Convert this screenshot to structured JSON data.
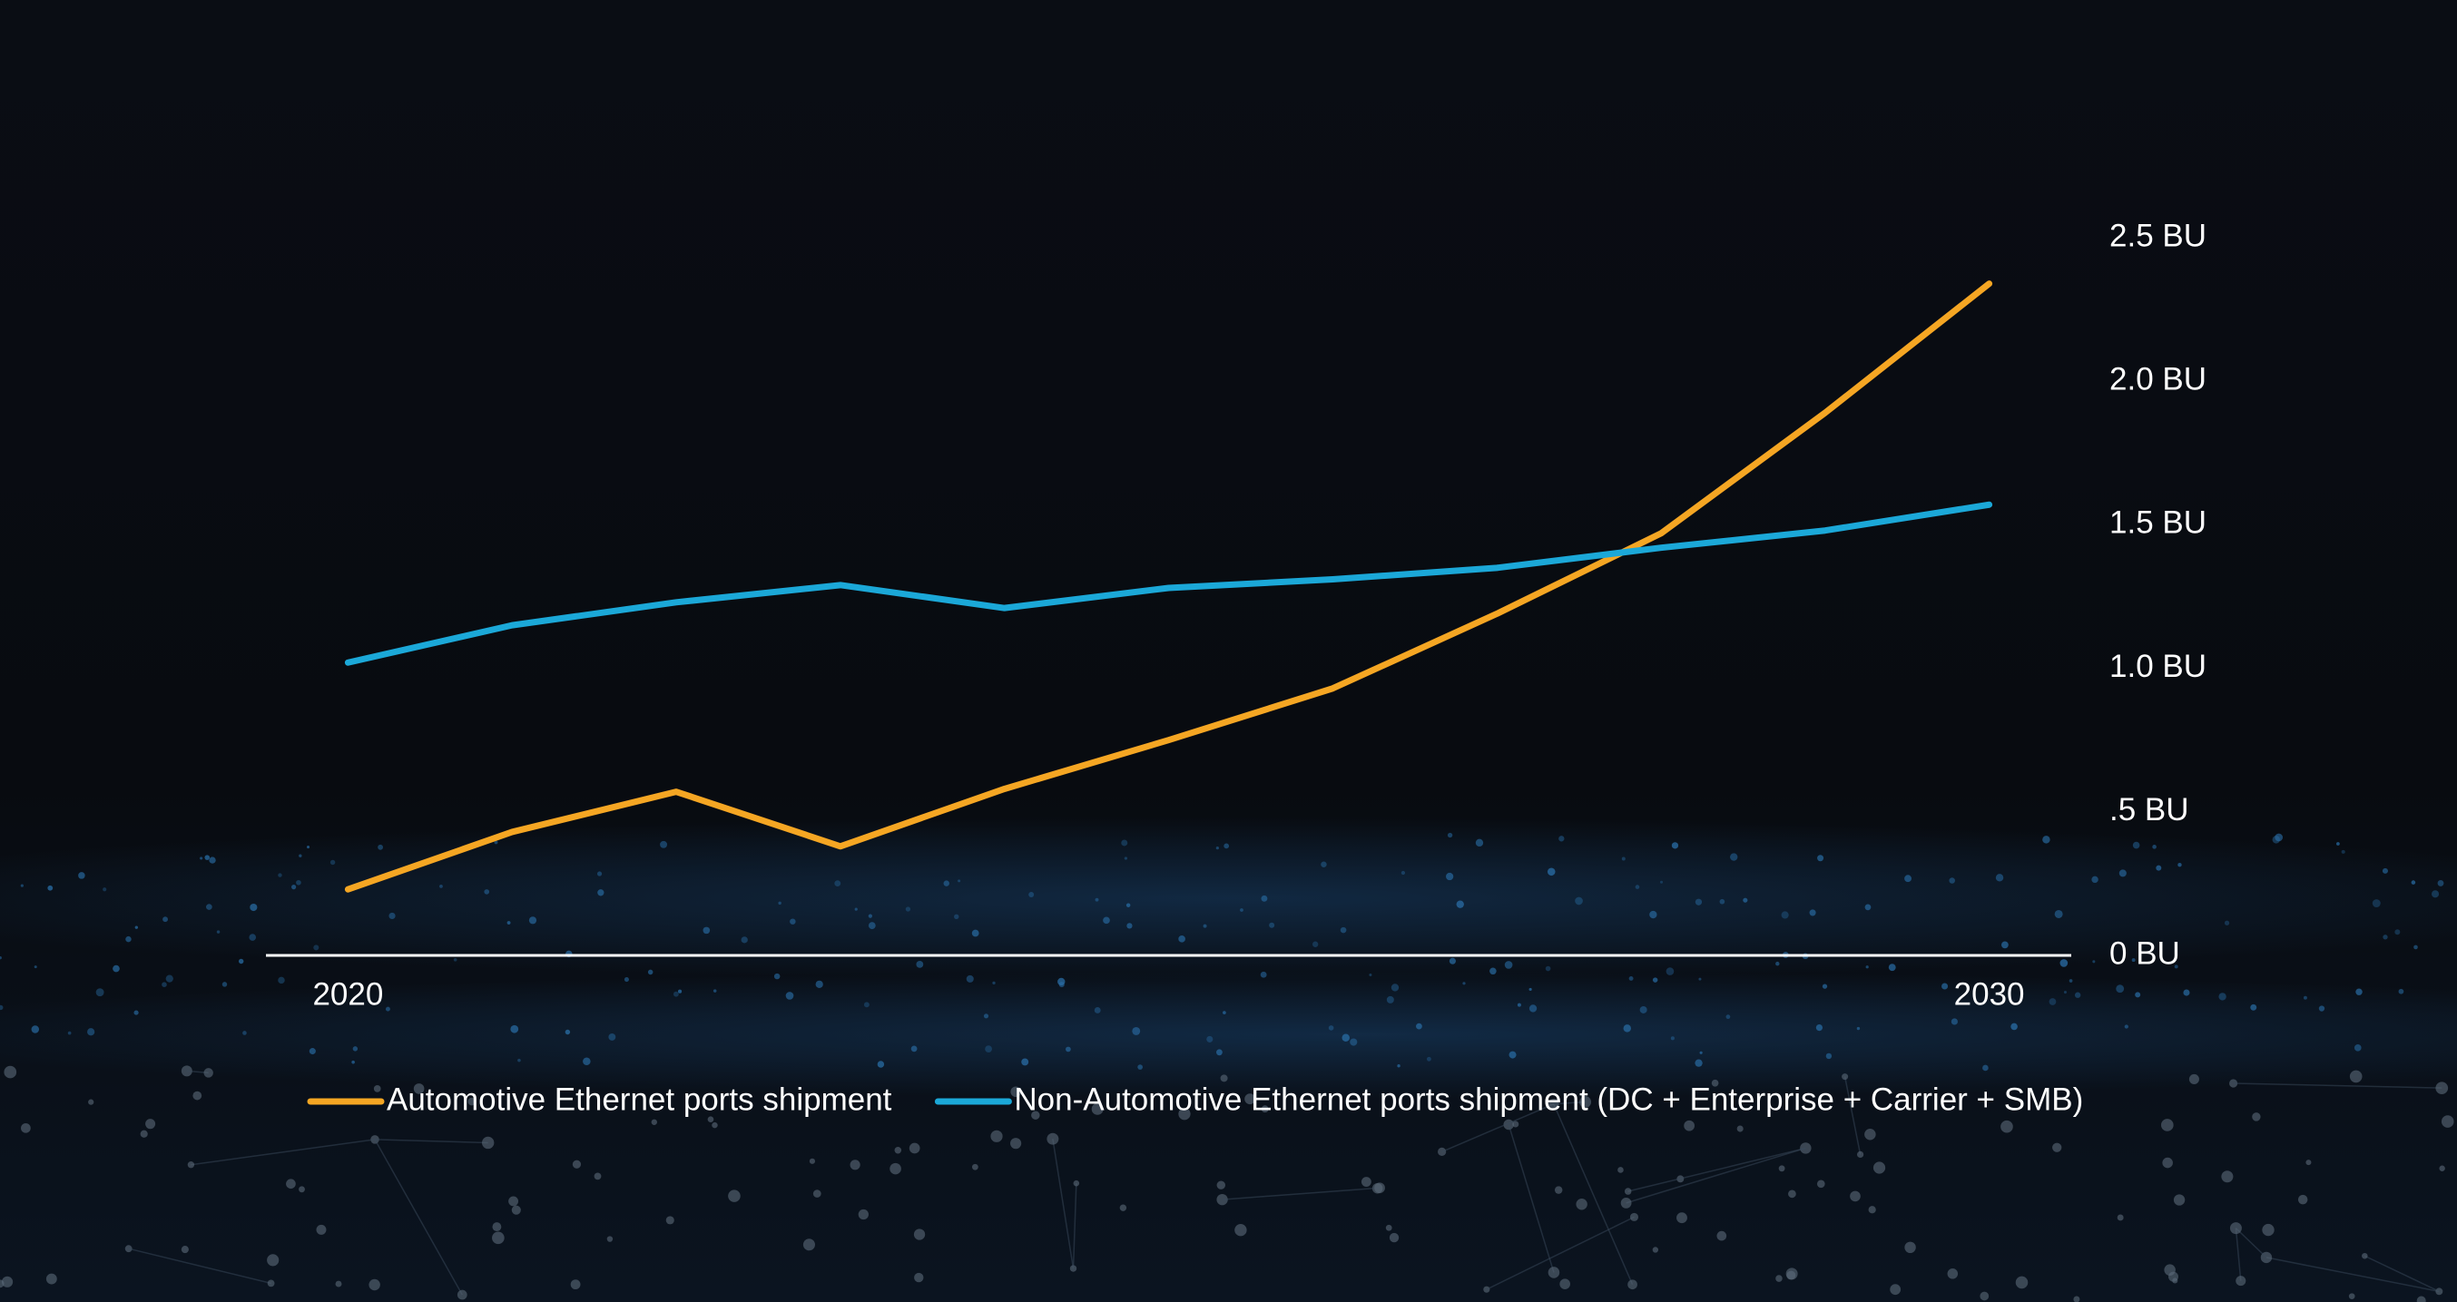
{
  "chart_data": {
    "type": "line",
    "x": [
      2020,
      2021,
      2022,
      2023,
      2024,
      2025,
      2026,
      2027,
      2028,
      2029,
      2030
    ],
    "series": [
      {
        "name": "Automotive Ethernet ports shipment",
        "color": "#f5a623",
        "values": [
          0.23,
          0.43,
          0.57,
          0.38,
          0.58,
          0.75,
          0.93,
          1.19,
          1.47,
          1.89,
          2.34
        ]
      },
      {
        "name": "Non-Automotive Ethernet ports shipment (DC + Enterprise + Carrier + SMB)",
        "color": "#1ba8d8",
        "values": [
          1.02,
          1.15,
          1.23,
          1.29,
          1.21,
          1.28,
          1.31,
          1.35,
          1.42,
          1.48,
          1.57
        ]
      }
    ],
    "xlim": [
      2019.5,
      2030.5
    ],
    "xticks": [
      2020,
      2030
    ],
    "ylim": [
      0,
      2.5
    ],
    "yticks": [
      {
        "value": 0,
        "label": "0 BU"
      },
      {
        "value": 0.5,
        "label": ".5 BU"
      },
      {
        "value": 1,
        "label": "1.0 BU"
      },
      {
        "value": 1.5,
        "label": "1.5 BU"
      },
      {
        "value": 2,
        "label": "2.0 BU"
      },
      {
        "value": 2.5,
        "label": "2.5 BU"
      }
    ],
    "grid": false,
    "legend": "bottom"
  }
}
